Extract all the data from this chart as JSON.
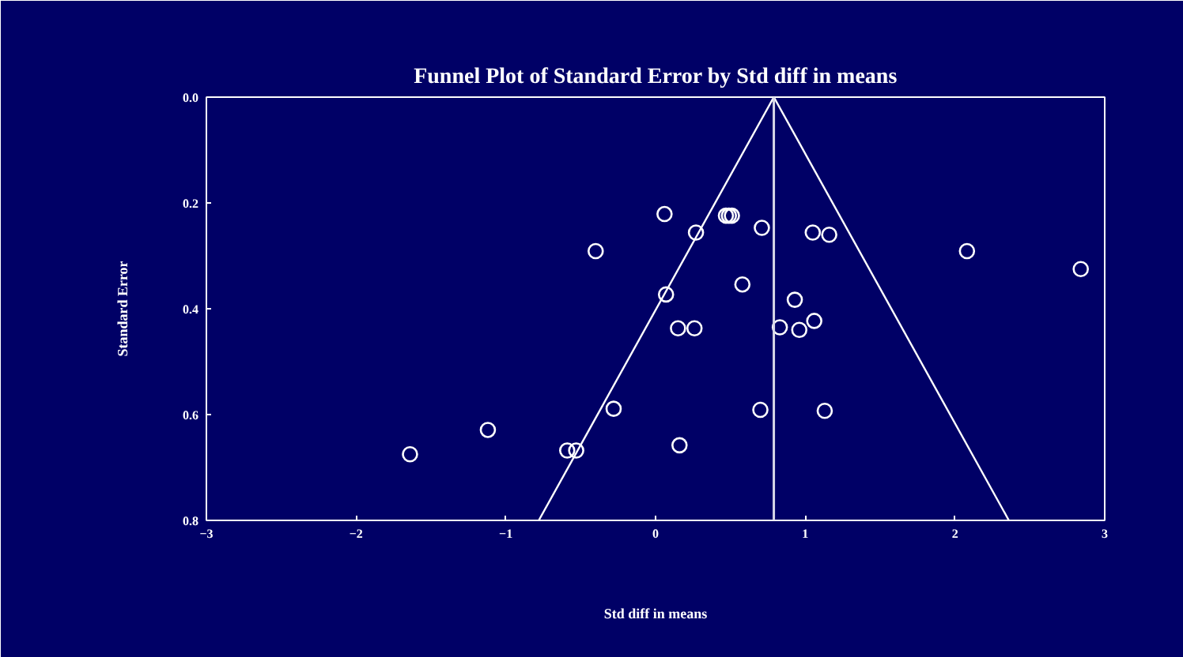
{
  "chart_data": {
    "type": "scatter",
    "title": "Funnel Plot of Standard Error by Std diff in means",
    "xlabel": "Std diff in means",
    "ylabel": "Standard Error",
    "xlim": [
      -3,
      3
    ],
    "xticks": [
      -3,
      -2,
      -1,
      0,
      1,
      2,
      3
    ],
    "ylim": [
      0.8,
      0
    ],
    "yticks": [
      {
        "value": 0,
        "label": "0.0"
      },
      {
        "value": 0.2,
        "label": "0.2"
      },
      {
        "value": 0.4,
        "label": "0.4"
      },
      {
        "value": 0.6,
        "label": "0.6"
      },
      {
        "value": 0.8,
        "label": "0.8"
      }
    ],
    "grid": false,
    "series": [
      {
        "marker": "circle",
        "color": "#ffffff",
        "x": [
          -1.64,
          -1.12,
          -0.59,
          -0.53,
          -0.28,
          -0.4,
          0.06,
          0.07,
          0.27,
          0.47,
          0.49,
          0.51,
          0.71,
          1.05,
          1.16,
          2.08,
          2.84,
          0.58,
          0.93,
          0.15,
          0.26,
          0.83,
          0.96,
          1.06,
          0.7,
          1.13,
          0.16
        ],
        "values": [
          0.675,
          0.629,
          0.668,
          0.668,
          0.589,
          0.291,
          0.221,
          0.373,
          0.256,
          0.224,
          0.224,
          0.224,
          0.247,
          0.256,
          0.26,
          0.291,
          0.325,
          0.354,
          0.383,
          0.437,
          0.437,
          0.435,
          0.44,
          0.423,
          0.591,
          0.593,
          0.658
        ]
      },
      {
        "type": "line",
        "marker": "none",
        "color": "#ffffff",
        "x": [
          -0.78,
          0.79,
          2.36
        ],
        "values": [
          0.8,
          0,
          0.8
        ]
      }
    ],
    "ref_lines": [
      {
        "axis": "x",
        "value": 0.79,
        "color": "#d8d8e8"
      }
    ]
  }
}
